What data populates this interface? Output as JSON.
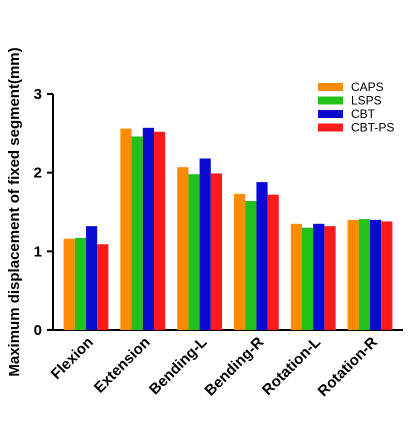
{
  "chart_data": {
    "type": "bar",
    "ylabel": "Maximum displacement of fixed segment(mm)",
    "xlabel": "",
    "ylim": [
      0,
      3
    ],
    "yticks": [
      "0",
      "1",
      "2",
      "3"
    ],
    "grid": false,
    "legend_position": "top-right",
    "categories": [
      "Flexion",
      "Extension",
      "Bending-L",
      "Bending-R",
      "Rotation-L",
      "Rotation-R"
    ],
    "series": [
      {
        "name": "CAPS",
        "color": "#ff8c00",
        "values": [
          1.16,
          2.56,
          2.07,
          1.73,
          1.35,
          1.4
        ]
      },
      {
        "name": "LSPS",
        "color": "#22c21b",
        "values": [
          1.17,
          2.46,
          1.98,
          1.64,
          1.3,
          1.41
        ]
      },
      {
        "name": "CBT",
        "color": "#0a0ad0",
        "values": [
          1.32,
          2.57,
          2.18,
          1.88,
          1.35,
          1.4
        ]
      },
      {
        "name": "CBT-PS",
        "color": "#ff1a1a",
        "values": [
          1.09,
          2.52,
          1.99,
          1.72,
          1.32,
          1.38
        ]
      }
    ]
  }
}
